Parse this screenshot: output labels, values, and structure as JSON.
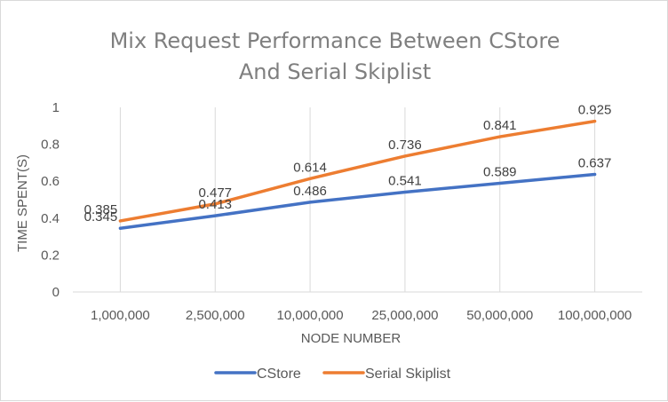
{
  "chart_data": {
    "type": "line",
    "title_lines": [
      "Mix Request Performance Between CStore",
      "And Serial Skiplist"
    ],
    "xlabel": "NODE NUMBER",
    "ylabel": "TIME SPENT(S)",
    "categories": [
      "1,000,000",
      "2,500,000",
      "10,000,000",
      "25,000,000",
      "50,000,000",
      "100,000,000"
    ],
    "ylim": [
      0,
      1
    ],
    "yticks": [
      "0",
      "0.2",
      "0.4",
      "0.6",
      "0.8",
      "1"
    ],
    "grid": "vertical",
    "legend_position": "bottom",
    "series": [
      {
        "name": "CStore",
        "color": "#4472C4",
        "values": [
          0.345,
          0.413,
          0.486,
          0.541,
          0.589,
          0.637
        ],
        "labels": [
          "0.345",
          "0.413",
          "0.486",
          "0.541",
          "0.589",
          "0.637"
        ]
      },
      {
        "name": "Serial Skiplist",
        "color": "#ED7D31",
        "values": [
          0.385,
          0.477,
          0.614,
          0.736,
          0.841,
          0.925
        ],
        "labels": [
          "0.385",
          "0.477",
          "0.614",
          "0.736",
          "0.841",
          "0.925"
        ]
      }
    ]
  }
}
